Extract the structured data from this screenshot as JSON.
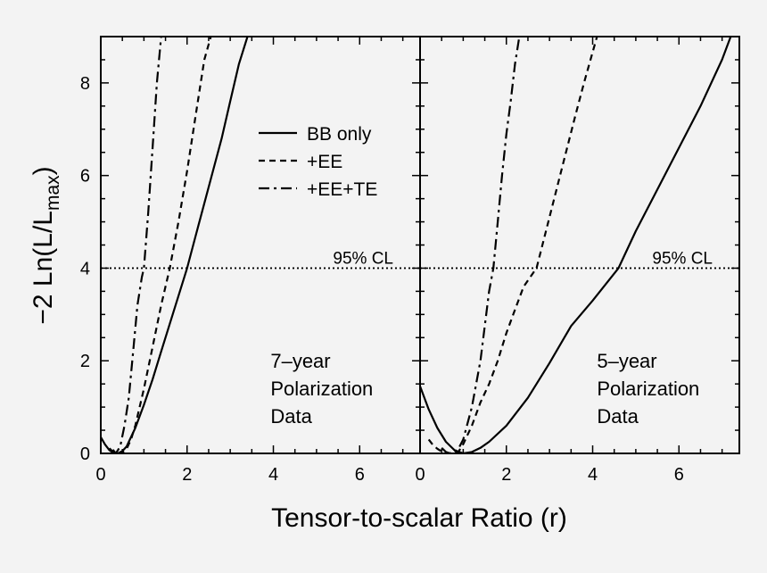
{
  "chart_data": {
    "type": "line",
    "xlabel": "Tensor-to-scalar Ratio (r)",
    "ylabel_main": "−2 Ln(L/L",
    "ylabel_sub": "max",
    "ylabel_close": ")",
    "ylim": [
      0,
      9
    ],
    "yticks": [
      "0",
      "2",
      "4",
      "6",
      "8"
    ],
    "grid": false,
    "legend_position": "upper-middle of left panel",
    "legend": [
      {
        "label": "BB only",
        "style": "solid"
      },
      {
        "label": "+EE",
        "style": "dashed"
      },
      {
        "label": "+EE+TE",
        "style": "dashdot"
      }
    ],
    "reference_line": {
      "y": 4,
      "label": "95% CL"
    },
    "panels": [
      {
        "id": "left",
        "xlim": [
          0,
          7.4
        ],
        "xticks": [
          "0",
          "2",
          "4",
          "6"
        ],
        "annotation": [
          "7–year",
          "Polarization",
          "Data"
        ],
        "series": [
          {
            "name": "BB only",
            "x": [
              0,
              0.1,
              0.2,
              0.3,
              0.4,
              0.5,
              0.6,
              0.8,
              1.0,
              1.2,
              1.4,
              1.6,
              1.8,
              2.0,
              2.2,
              2.4,
              2.6,
              2.8,
              3.0,
              3.2,
              3.4
            ],
            "y": [
              0.35,
              0.19,
              0.07,
              0.01,
              0.0,
              0.05,
              0.15,
              0.55,
              1.05,
              1.6,
              2.2,
              2.8,
              3.4,
              4.0,
              4.7,
              5.4,
              6.1,
              6.8,
              7.6,
              8.4,
              9.0
            ]
          },
          {
            "name": "+EE",
            "x": [
              0.2,
              0.3,
              0.4,
              0.5,
              0.6,
              0.7,
              0.8,
              1.0,
              1.2,
              1.4,
              1.6,
              1.8,
              2.0,
              2.2,
              2.4,
              2.55
            ],
            "y": [
              0.11,
              0.02,
              0.0,
              0.02,
              0.1,
              0.3,
              0.6,
              1.4,
              2.3,
              3.2,
              4.0,
              5.0,
              6.1,
              7.3,
              8.5,
              9.0
            ]
          },
          {
            "name": "+EE+TE",
            "x": [
              0.28,
              0.35,
              0.45,
              0.55,
              0.65,
              0.75,
              0.85,
              0.95,
              1.0,
              1.1,
              1.2,
              1.3,
              1.4
            ],
            "y": [
              0.08,
              0.0,
              0.15,
              0.6,
              1.2,
              2.2,
              3.2,
              3.8,
              4.0,
              5.2,
              6.6,
              8.0,
              9.0
            ]
          }
        ]
      },
      {
        "id": "right",
        "xlim": [
          0,
          7.4
        ],
        "xticks": [
          "0",
          "2",
          "4",
          "6"
        ],
        "annotation": [
          "5–year",
          "Polarization",
          "Data"
        ],
        "series": [
          {
            "name": "BB only",
            "x": [
              0,
              0.2,
              0.4,
              0.6,
              0.8,
              1.0,
              1.2,
              1.4,
              1.6,
              2.0,
              2.5,
              3.0,
              3.5,
              4.0,
              4.6,
              5.0,
              5.5,
              6.0,
              6.5,
              7.0,
              7.2
            ],
            "y": [
              1.45,
              0.95,
              0.55,
              0.25,
              0.07,
              0.0,
              0.03,
              0.12,
              0.25,
              0.6,
              1.2,
              1.95,
              2.75,
              3.3,
              4.0,
              4.8,
              5.7,
              6.6,
              7.5,
              8.5,
              9.0
            ]
          },
          {
            "name": "+EE",
            "x": [
              0.2,
              0.3,
              0.4,
              0.5,
              0.6,
              0.75,
              0.9,
              1.0,
              1.2,
              1.4,
              1.6,
              1.8,
              2.0,
              2.2,
              2.4,
              2.7,
              3.0,
              3.3,
              3.6,
              3.8,
              4.1
            ],
            "y": [
              0.3,
              0.18,
              0.1,
              0.04,
              0.01,
              0.0,
              0.05,
              0.2,
              0.6,
              1.1,
              1.5,
              2.0,
              2.6,
              3.1,
              3.6,
              4.0,
              5.1,
              6.2,
              7.3,
              8.0,
              9.0
            ]
          },
          {
            "name": "+EE+TE",
            "x": [
              0.5,
              0.6,
              0.7,
              0.8,
              0.9,
              1.0,
              1.2,
              1.4,
              1.6,
              1.7,
              1.8,
              1.9,
              2.0,
              2.1,
              2.2,
              2.3
            ],
            "y": [
              0.12,
              0.03,
              0.0,
              0.03,
              0.12,
              0.3,
              1.0,
              2.0,
              3.5,
              4.0,
              5.0,
              6.0,
              6.9,
              7.6,
              8.4,
              9.0
            ]
          }
        ]
      }
    ]
  }
}
